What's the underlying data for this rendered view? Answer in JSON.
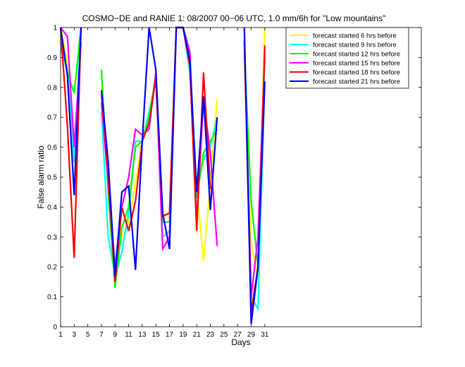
{
  "chart_data": {
    "type": "line",
    "title": "COSMO−DE and RANIE 1: 08/2007 00−06 UTC, 1.0 mm/6h for \"Low mountains\"",
    "xlabel": "Days",
    "ylabel": "False alarm ratio",
    "xlim": [
      1,
      54
    ],
    "ylim": [
      0,
      1
    ],
    "xticks": [
      1,
      3,
      5,
      7,
      9,
      11,
      13,
      15,
      17,
      19,
      21,
      23,
      25,
      27,
      29,
      31
    ],
    "yticks": [
      0,
      0.1,
      0.2,
      0.3,
      0.4,
      0.5,
      0.6,
      0.7,
      0.8,
      0.9,
      1
    ],
    "ytick_labels": [
      "0",
      "0.1",
      "0.2",
      "0.3",
      "0.4",
      "0.5",
      "0.6",
      "0.7",
      "0.8",
      "0.9",
      "1"
    ],
    "grid": false,
    "legend_position": "top-right",
    "series": [
      {
        "name": "forecast started 6 hrs before",
        "color": "#ffff00",
        "points": [
          [
            1,
            1
          ],
          [
            2,
            0.88
          ],
          [
            3,
            0.45
          ],
          [
            4,
            0.95
          ],
          [
            null,
            null
          ],
          [
            7,
            0.8
          ],
          [
            8,
            0.5
          ],
          [
            9,
            0.2
          ],
          [
            10,
            0.3
          ],
          [
            11,
            0.35
          ],
          [
            12,
            0.48
          ],
          [
            13,
            0.62
          ],
          [
            14,
            0.68
          ],
          [
            15,
            0.85
          ],
          [
            16,
            0.36
          ],
          [
            17,
            0.38
          ],
          [
            18,
            1
          ],
          [
            19,
            1
          ],
          [
            20,
            0.88
          ],
          [
            21,
            0.46
          ],
          [
            22,
            0.22
          ],
          [
            23,
            0.48
          ],
          [
            24,
            0.76
          ],
          [
            null,
            null
          ],
          [
            28,
            0.9
          ],
          [
            29,
            0.28
          ],
          [
            30,
            0.16
          ],
          [
            31,
            1
          ]
        ]
      },
      {
        "name": "forecast started 9 hrs before",
        "color": "#00ffff",
        "points": [
          [
            1,
            0.93
          ],
          [
            2,
            0.86
          ],
          [
            3,
            0.55
          ],
          [
            4,
            1
          ],
          [
            null,
            null
          ],
          [
            7,
            0.72
          ],
          [
            8,
            0.3
          ],
          [
            9,
            0.17
          ],
          [
            10,
            0.25
          ],
          [
            11,
            0.38
          ],
          [
            12,
            0.62
          ],
          [
            13,
            0.62
          ],
          [
            14,
            0.72
          ],
          [
            15,
            0.82
          ],
          [
            16,
            0.3
          ],
          [
            17,
            0.32
          ],
          [
            18,
            1
          ],
          [
            19,
            1
          ],
          [
            20,
            0.85
          ],
          [
            21,
            0.47
          ],
          [
            22,
            0.56
          ],
          [
            23,
            0.6
          ],
          [
            24,
            0.7
          ],
          [
            null,
            null
          ],
          [
            28,
            0.98
          ],
          [
            29,
            0.1
          ],
          [
            30,
            0.06
          ],
          [
            31,
            0.82
          ]
        ]
      },
      {
        "name": "forecast started 12 hrs before",
        "color": "#00ff00",
        "points": [
          [
            1,
            0.95
          ],
          [
            2,
            0.85
          ],
          [
            3,
            0.78
          ],
          [
            4,
            1
          ],
          [
            null,
            null
          ],
          [
            7,
            0.86
          ],
          [
            8,
            0.45
          ],
          [
            9,
            0.13
          ],
          [
            10,
            0.33
          ],
          [
            11,
            0.4
          ],
          [
            12,
            0.6
          ],
          [
            13,
            0.62
          ],
          [
            14,
            0.7
          ],
          [
            15,
            0.84
          ],
          [
            16,
            0.35
          ],
          [
            17,
            0.35
          ],
          [
            18,
            1
          ],
          [
            19,
            1
          ],
          [
            20,
            0.9
          ],
          [
            21,
            0.43
          ],
          [
            22,
            0.58
          ],
          [
            23,
            0.62
          ],
          [
            24,
            0.66
          ],
          [
            null,
            null
          ],
          [
            28,
            0.92
          ],
          [
            29,
            0.42
          ],
          [
            30,
            0.2
          ],
          [
            31,
            0.9
          ]
        ]
      },
      {
        "name": "forecast started 15 hrs before",
        "color": "#ff00ff",
        "points": [
          [
            1,
            1
          ],
          [
            2,
            0.97
          ],
          [
            3,
            0.6
          ],
          [
            4,
            0.95
          ],
          [
            null,
            null
          ],
          [
            7,
            0.75
          ],
          [
            8,
            0.48
          ],
          [
            9,
            0.2
          ],
          [
            10,
            0.4
          ],
          [
            11,
            0.5
          ],
          [
            12,
            0.66
          ],
          [
            13,
            0.64
          ],
          [
            14,
            0.66
          ],
          [
            15,
            0.85
          ],
          [
            16,
            0.26
          ],
          [
            17,
            0.3
          ],
          [
            18,
            1
          ],
          [
            19,
            1
          ],
          [
            20,
            0.92
          ],
          [
            21,
            0.35
          ],
          [
            22,
            0.76
          ],
          [
            23,
            0.58
          ],
          [
            24,
            0.27
          ],
          [
            null,
            null
          ],
          [
            28,
            0.96
          ],
          [
            29,
            0.1
          ],
          [
            30,
            0.3
          ],
          [
            31,
            0.92
          ]
        ]
      },
      {
        "name": "forecast started 18 hrs before",
        "color": "#ff0000",
        "points": [
          [
            1,
            1
          ],
          [
            2,
            0.67
          ],
          [
            3,
            0.23
          ],
          [
            4,
            1
          ],
          [
            null,
            null
          ],
          [
            7,
            0.78
          ],
          [
            8,
            0.5
          ],
          [
            9,
            0.15
          ],
          [
            10,
            0.4
          ],
          [
            11,
            0.32
          ],
          [
            12,
            0.42
          ],
          [
            13,
            0.62
          ],
          [
            14,
            0.68
          ],
          [
            15,
            0.83
          ],
          [
            16,
            0.37
          ],
          [
            17,
            0.38
          ],
          [
            18,
            1
          ],
          [
            19,
            1
          ],
          [
            20,
            0.87
          ],
          [
            21,
            0.32
          ],
          [
            22,
            0.85
          ],
          [
            23,
            0.46
          ],
          [
            null,
            null
          ],
          [
            28,
            0.95
          ],
          [
            29,
            0.05
          ],
          [
            30,
            0.2
          ],
          [
            31,
            0.94
          ]
        ]
      },
      {
        "name": "forecast started 21 hrs before",
        "color": "#0000ff",
        "points": [
          [
            1,
            1
          ],
          [
            2,
            0.84
          ],
          [
            3,
            0.44
          ],
          [
            4,
            1
          ],
          [
            null,
            null
          ],
          [
            7,
            0.79
          ],
          [
            8,
            0.55
          ],
          [
            9,
            0.17
          ],
          [
            10,
            0.45
          ],
          [
            11,
            0.47
          ],
          [
            12,
            0.19
          ],
          [
            13,
            0.62
          ],
          [
            14,
            1
          ],
          [
            15,
            0.86
          ],
          [
            16,
            0.38
          ],
          [
            17,
            0.26
          ],
          [
            18,
            1
          ],
          [
            19,
            1
          ],
          [
            20,
            0.89
          ],
          [
            21,
            0.45
          ],
          [
            22,
            0.77
          ],
          [
            23,
            0.39
          ],
          [
            24,
            0.7
          ],
          [
            null,
            null
          ],
          [
            28,
            1
          ],
          [
            29,
            0.01
          ],
          [
            30,
            0.2
          ],
          [
            31,
            0.82
          ]
        ]
      }
    ]
  }
}
